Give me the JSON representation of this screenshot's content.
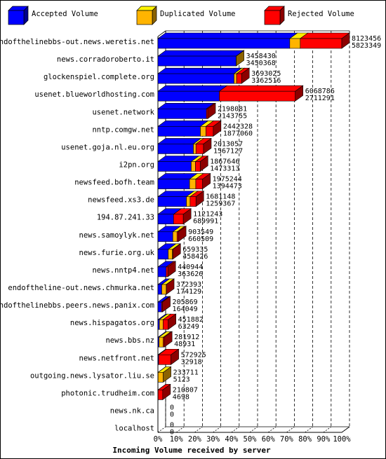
{
  "chart_data": {
    "type": "bar",
    "orientation": "horizontal",
    "stacked": true,
    "three_d": true,
    "title": "Incoming Volume received by server",
    "legend_position": "top",
    "series": [
      {
        "name": "Accepted Volume",
        "color": "#0000ff"
      },
      {
        "name": "Duplicated Volume",
        "color": "#ffb400"
      },
      {
        "name": "Rejected Volume",
        "color": "#ff0000"
      }
    ],
    "x_ticks": [
      "0%",
      "10%",
      "20%",
      "30%",
      "40%",
      "50%",
      "60%",
      "70%",
      "80%",
      "90%",
      "100%"
    ],
    "xlim": [
      0,
      100
    ],
    "rows": [
      {
        "server": "endofthelinebbs-out.news.weretis.net",
        "total": "8123456",
        "accepted": "5823349",
        "accepted_pct": 71.7,
        "duplicated_pct": 5.7,
        "rejected_pct": 22.6
      },
      {
        "server": "news.corradoroberto.it",
        "total": "3458430",
        "accepted": "3450368",
        "accepted_pct": 42.5,
        "duplicated_pct": 0.1,
        "rejected_pct": 0.0
      },
      {
        "server": "glockenspiel.complete.org",
        "total": "3693025",
        "accepted": "3362516",
        "accepted_pct": 41.4,
        "duplicated_pct": 1.4,
        "rejected_pct": 2.7
      },
      {
        "server": "usenet.blueworldhosting.com",
        "total": "6068786",
        "accepted": "2711291",
        "accepted_pct": 33.4,
        "duplicated_pct": 0.0,
        "rejected_pct": 41.3
      },
      {
        "server": "usenet.network",
        "total": "2198081",
        "accepted": "2143755",
        "accepted_pct": 26.4,
        "duplicated_pct": 0.0,
        "rejected_pct": 0.7
      },
      {
        "server": "nntp.comgw.net",
        "total": "2442328",
        "accepted": "1877060",
        "accepted_pct": 23.1,
        "duplicated_pct": 3.0,
        "rejected_pct": 4.0
      },
      {
        "server": "usenet.goja.nl.eu.org",
        "total": "2013057",
        "accepted": "1567127",
        "accepted_pct": 19.3,
        "duplicated_pct": 1.4,
        "rejected_pct": 4.1
      },
      {
        "server": "i2pn.org",
        "total": "1867646",
        "accepted": "1473313",
        "accepted_pct": 18.1,
        "duplicated_pct": 2.3,
        "rejected_pct": 2.6
      },
      {
        "server": "newsfeed.bofh.team",
        "total": "1975244",
        "accepted": "1394473",
        "accepted_pct": 17.2,
        "duplicated_pct": 3.4,
        "rejected_pct": 3.7
      },
      {
        "server": "newsfeed.xs3.de",
        "total": "1681148",
        "accepted": "1259367",
        "accepted_pct": 15.5,
        "duplicated_pct": 2.0,
        "rejected_pct": 3.2
      },
      {
        "server": "194.87.241.33",
        "total": "1121243",
        "accepted": "689991",
        "accepted_pct": 8.5,
        "duplicated_pct": 0.0,
        "rejected_pct": 5.3
      },
      {
        "server": "news.samoylyk.net",
        "total": "903549",
        "accepted": "660509",
        "accepted_pct": 8.1,
        "duplicated_pct": 2.3,
        "rejected_pct": 0.7
      },
      {
        "server": "news.furie.org.uk",
        "total": "659335",
        "accepted": "458426",
        "accepted_pct": 5.6,
        "duplicated_pct": 2.3,
        "rejected_pct": 0.2
      },
      {
        "server": "news.nntp4.net",
        "total": "440944",
        "accepted": "363626",
        "accepted_pct": 4.5,
        "duplicated_pct": 0.0,
        "rejected_pct": 0.9
      },
      {
        "server": "endoftheline-out.news.chmurka.net",
        "total": "372393",
        "accepted": "174129",
        "accepted_pct": 2.1,
        "duplicated_pct": 2.4,
        "rejected_pct": 0.1
      },
      {
        "server": "endofthelinebbs.peers.news.panix.com",
        "total": "205869",
        "accepted": "164049",
        "accepted_pct": 2.0,
        "duplicated_pct": 0.0,
        "rejected_pct": 0.5
      },
      {
        "server": "news.hispagatos.org",
        "total": "451882",
        "accepted": "63249",
        "accepted_pct": 0.8,
        "duplicated_pct": 2.0,
        "rejected_pct": 2.8
      },
      {
        "server": "news.bbs.nz",
        "total": "281912",
        "accepted": "48931",
        "accepted_pct": 0.6,
        "duplicated_pct": 2.3,
        "rejected_pct": 0.6
      },
      {
        "server": "news.netfront.net",
        "total": "572925",
        "accepted": "32918",
        "accepted_pct": 0.4,
        "duplicated_pct": 0.0,
        "rejected_pct": 6.7
      },
      {
        "server": "outgoing.news.lysator.liu.se",
        "total": "233711",
        "accepted": "5123",
        "accepted_pct": 0.1,
        "duplicated_pct": 2.8,
        "rejected_pct": 0.0
      },
      {
        "server": "photonic.trudheim.com",
        "total": "210807",
        "accepted": "4698",
        "accepted_pct": 0.1,
        "duplicated_pct": 0.0,
        "rejected_pct": 2.5
      },
      {
        "server": "news.nk.ca",
        "total": "0",
        "accepted": "0",
        "accepted_pct": 0,
        "duplicated_pct": 0,
        "rejected_pct": 0
      },
      {
        "server": "localhost",
        "total": "0",
        "accepted": "0",
        "accepted_pct": 0,
        "duplicated_pct": 0,
        "rejected_pct": 0
      }
    ]
  }
}
